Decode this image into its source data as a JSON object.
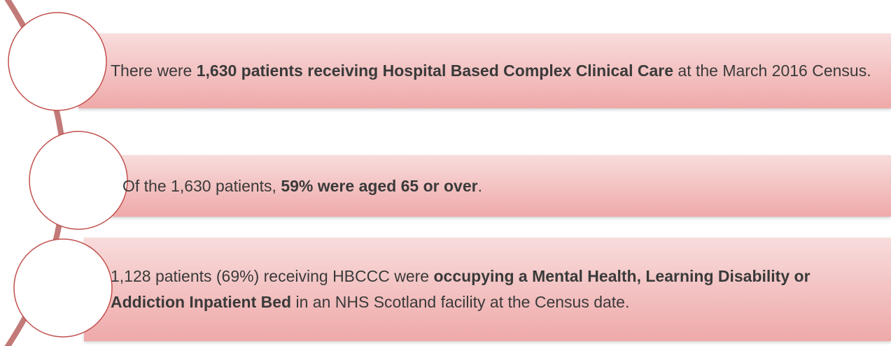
{
  "items": [
    {
      "segments": [
        {
          "text": "There were ",
          "bold": false
        },
        {
          "text": "1,630 patients receiving Hospital Based Complex Clinical Care",
          "bold": true
        },
        {
          "text": " at the March 2016 Census.",
          "bold": false
        }
      ]
    },
    {
      "segments": [
        {
          "text": "Of the 1,630 patients, ",
          "bold": false
        },
        {
          "text": "59% were aged 65 or over",
          "bold": true
        },
        {
          "text": ".",
          "bold": false
        }
      ]
    },
    {
      "segments": [
        {
          "text": "1,128 patients (69%) receiving HBCCC were ",
          "bold": false
        },
        {
          "text": "occupying a Mental Health, Learning Disability or Addiction Inpatient Bed",
          "bold": true
        },
        {
          "text": " in an NHS Scotland facility at the Census date.",
          "bold": false
        }
      ]
    }
  ]
}
